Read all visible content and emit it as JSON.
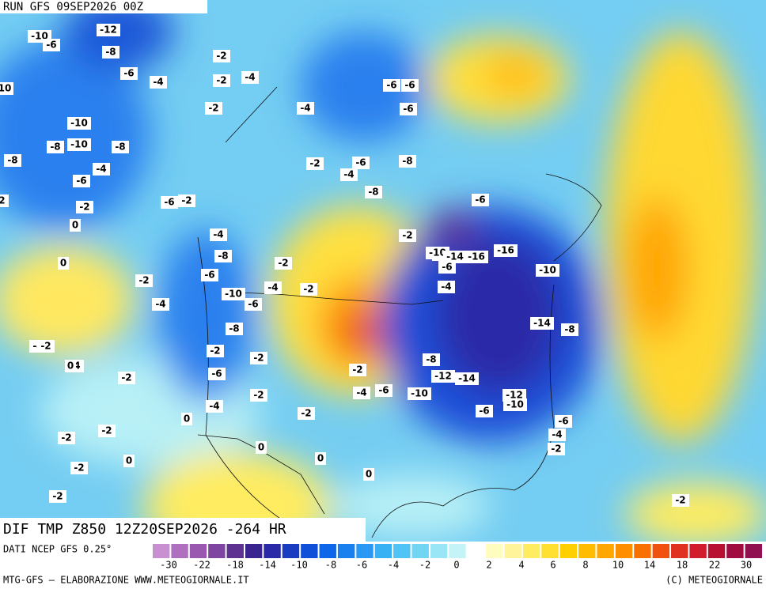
{
  "header": {
    "run": "RUN GFS 09SEP2026 00Z",
    "field": "DIF TMP Z850 12Z20SEP2026 -264 HR",
    "source": "DATI NCEP GFS 0.25°",
    "credit_left": "MTG-GFS — ELABORAZIONE WWW.METEOGIORNALE.IT",
    "credit_right": "(C) METEOGIORNALE"
  },
  "legend": {
    "colors": [
      "#c890d0",
      "#b070c0",
      "#9a58b0",
      "#7e46a0",
      "#5e3290",
      "#3a2490",
      "#2a2aa8",
      "#1a3cc0",
      "#1050d8",
      "#1066e8",
      "#1a80f0",
      "#2898f4",
      "#38b0f4",
      "#50c4f4",
      "#70d6f4",
      "#98e6f6",
      "#c4f4f8",
      "#ffffff",
      "#fffcc0",
      "#fff49a",
      "#ffec60",
      "#ffe030",
      "#ffd000",
      "#ffbc00",
      "#ffa600",
      "#ff8e00",
      "#f87000",
      "#f05010",
      "#e03020",
      "#d01c2c",
      "#b81030",
      "#a00c40",
      "#901050"
    ],
    "labels": [
      "-30",
      "-22",
      "-18",
      "-14",
      "-10",
      "-8",
      "-6",
      "-4",
      "-2",
      "0",
      "2",
      "4",
      "6",
      "8",
      "10",
      "14",
      "18",
      "22",
      "30"
    ]
  },
  "contours": [
    "-12",
    "-10",
    "-8",
    "-6",
    "-4",
    "-2",
    "-4",
    "-6",
    "10",
    "-10",
    "-8",
    "-10",
    "-8",
    "-8",
    "-4",
    "-6",
    "-2",
    "0",
    "-6",
    "-2",
    "0",
    "-2",
    "-4",
    "-6",
    "-2",
    "-8",
    "-4",
    "-2",
    "-6",
    "-10",
    "-6",
    "-8",
    "-4",
    "-2",
    "-2",
    "-6",
    "-4",
    "-8",
    "-2",
    "-4",
    "-6",
    "-6",
    "-8",
    "-8",
    "-10",
    "-14",
    "-16",
    "-16",
    "-10",
    "-14",
    "-8",
    "-6",
    "-4",
    "-8",
    "-12",
    "-14",
    "-10",
    "-6",
    "-4",
    "-12",
    "-10",
    "-6",
    "-2",
    "-6",
    "-2",
    "-2",
    "-2",
    "-2",
    "-4",
    "-6",
    "-2",
    "-4",
    "-4",
    "-2",
    "-2",
    "-2",
    "0",
    "0",
    "0",
    "0",
    "0",
    "0",
    "-2",
    "-2",
    "-2",
    "-2",
    "-2",
    "-6",
    "-4",
    "-2"
  ]
}
